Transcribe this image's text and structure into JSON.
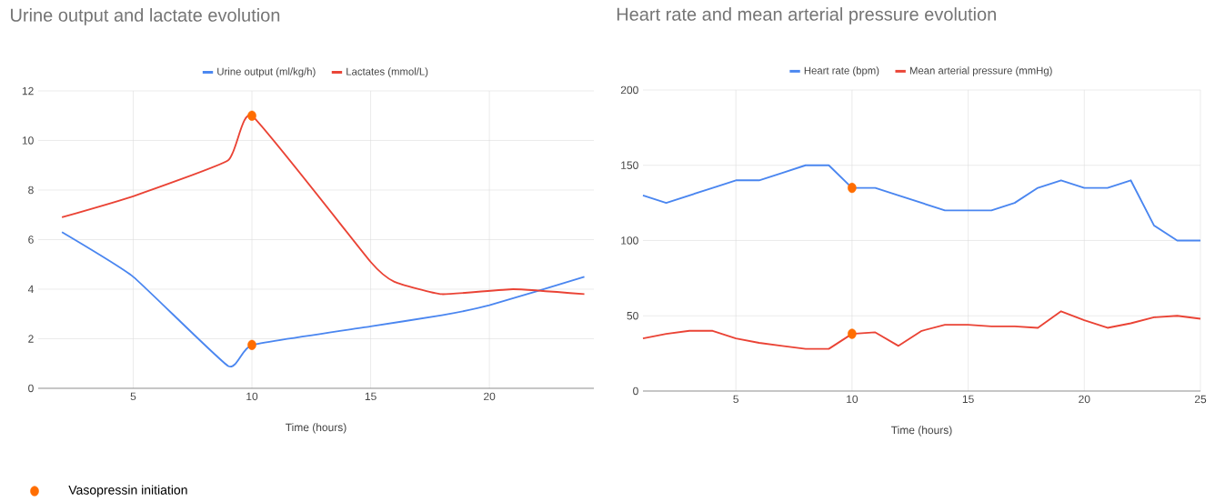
{
  "chart_data": [
    {
      "type": "line",
      "title": "Urine output and lactate evolution",
      "annotations": [
        "Vasopressin initiation"
      ],
      "xlabel": "Time (hours)",
      "xlim": [
        1,
        24.4
      ],
      "xticks": [
        5,
        10,
        15,
        20
      ],
      "ylim": [
        0,
        12
      ],
      "yticks": [
        0,
        2,
        4,
        6,
        8,
        10,
        12
      ],
      "grid": true,
      "legend": "top",
      "series": [
        {
          "name": "Urine output (ml/kg/h)",
          "color": "#4a86f0",
          "x": [
            2,
            5,
            9,
            10,
            15,
            18,
            20,
            24
          ],
          "values": [
            6.3,
            4.5,
            0.9,
            1.75,
            2.5,
            2.95,
            3.35,
            4.5
          ]
        },
        {
          "name": "Lactates (mmol/L)",
          "color": "#ea4335",
          "x": [
            2,
            5,
            9,
            10,
            15,
            16,
            18,
            21,
            24
          ],
          "values": [
            6.9,
            7.75,
            9.2,
            11,
            5.1,
            4.3,
            3.8,
            4.0,
            3.8
          ]
        },
        {
          "type": "scatter",
          "color": "#ff6d01",
          "marker": "circle",
          "x": [
            10,
            10
          ],
          "values": [
            11,
            1.75
          ]
        }
      ]
    },
    {
      "type": "line",
      "title": "Heart rate and mean arterial pressure evolution",
      "xlabel": "Time (hours)",
      "xlim": [
        1,
        25
      ],
      "xticks": [
        5,
        10,
        15,
        20,
        25
      ],
      "ylim": [
        0,
        200
      ],
      "yticks": [
        0,
        50,
        100,
        150,
        200
      ],
      "grid": true,
      "legend": "top",
      "series": [
        {
          "name": "Heart rate (bpm)",
          "color": "#4a86f0",
          "x": [
            1,
            2,
            3,
            4,
            5,
            6,
            7,
            8,
            9,
            10,
            11,
            12,
            13,
            14,
            15,
            16,
            17,
            18,
            19,
            20,
            21,
            22,
            23,
            24,
            25
          ],
          "values": [
            130,
            125,
            130,
            135,
            140,
            140,
            145,
            150,
            150,
            135,
            135,
            130,
            125,
            120,
            120,
            120,
            125,
            135,
            140,
            135,
            135,
            140,
            110,
            100,
            100
          ]
        },
        {
          "name": "Mean arterial pressure (mmHg)",
          "color": "#ea4335",
          "x": [
            1,
            2,
            3,
            4,
            5,
            6,
            7,
            8,
            9,
            10,
            11,
            12,
            13,
            14,
            15,
            16,
            17,
            18,
            19,
            20,
            21,
            22,
            23,
            24,
            25
          ],
          "values": [
            35,
            38,
            40,
            40,
            35,
            32,
            30,
            28,
            28,
            38,
            39,
            30,
            40,
            44,
            44,
            43,
            43,
            42,
            53,
            47,
            42,
            45,
            49,
            50,
            48
          ]
        },
        {
          "type": "scatter",
          "color": "#ff6d01",
          "marker": "circle",
          "x": [
            10,
            10
          ],
          "values": [
            135,
            38
          ]
        }
      ]
    }
  ]
}
